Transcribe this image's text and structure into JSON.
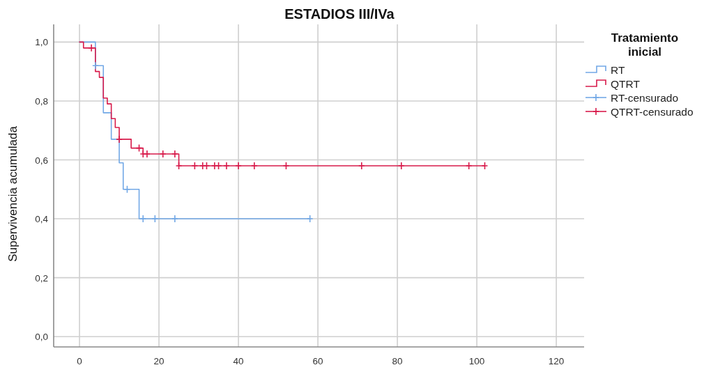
{
  "chart_data": {
    "type": "step",
    "title": "ESTADIOS III/IVa",
    "ylabel": "Supervivencia acumulada",
    "legend_title": "Tratamiento inicial",
    "legend": "right",
    "grid": true,
    "xlim": [
      -6.5,
      127
    ],
    "xticks": [
      0,
      20,
      40,
      60,
      80,
      100,
      120
    ],
    "ylim": [
      -0.035,
      1.06
    ],
    "yticks": [
      {
        "value": 0,
        "label": "0,0"
      },
      {
        "value": 0.2,
        "label": "0,2"
      },
      {
        "value": 0.4,
        "label": "0,4"
      },
      {
        "value": 0.6,
        "label": "0,6"
      },
      {
        "value": 0.8,
        "label": "0,8"
      },
      {
        "value": 1,
        "label": "1,0"
      }
    ],
    "series": [
      {
        "name": "RT",
        "color": "#72a8e6",
        "x": [
          0,
          4,
          6,
          8,
          10,
          11,
          15,
          58
        ],
        "values": [
          1,
          0.92,
          0.76,
          0.67,
          0.59,
          0.5,
          0.4,
          0.4
        ]
      },
      {
        "name": "QTRT",
        "color": "#d81b4b",
        "x": [
          0,
          1,
          4,
          5,
          6,
          7,
          8,
          9,
          10,
          13,
          16,
          25,
          102
        ],
        "values": [
          1,
          0.98,
          0.9,
          0.88,
          0.81,
          0.79,
          0.74,
          0.71,
          0.67,
          0.64,
          0.62,
          0.58,
          0.58
        ]
      },
      {
        "name": "RT-censurado",
        "type": "scatter",
        "marker": "cross",
        "color": "#72a8e6",
        "x": [
          4,
          12,
          16,
          19,
          24,
          58
        ],
        "values": [
          0.92,
          0.5,
          0.4,
          0.4,
          0.4,
          0.4
        ]
      },
      {
        "name": "QTRT-censurado",
        "type": "scatter",
        "marker": "cross",
        "color": "#d81b4b",
        "x": [
          3,
          10,
          15,
          16,
          17,
          21,
          24,
          25,
          29,
          31,
          32,
          34,
          35,
          37,
          40,
          44,
          52,
          71,
          81,
          98,
          102
        ],
        "values": [
          0.98,
          0.67,
          0.64,
          0.62,
          0.62,
          0.62,
          0.62,
          0.58,
          0.58,
          0.58,
          0.58,
          0.58,
          0.58,
          0.58,
          0.58,
          0.58,
          0.58,
          0.58,
          0.58,
          0.58,
          0.58
        ]
      }
    ]
  }
}
